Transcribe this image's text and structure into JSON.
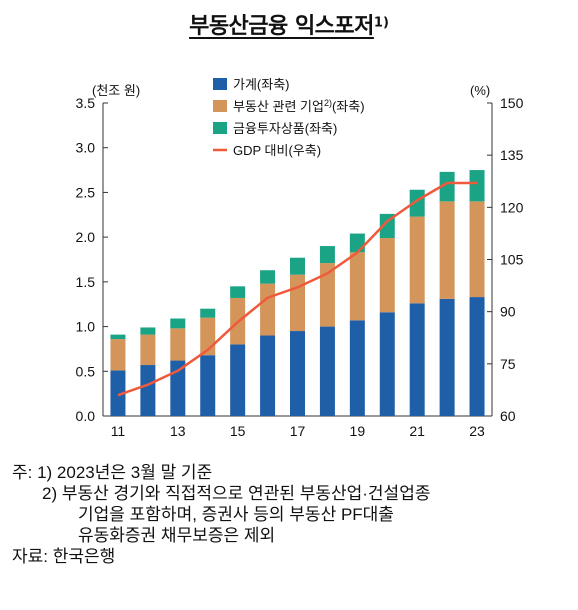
{
  "title": "부동산금융 익스포저",
  "title_sup": "1)",
  "chart_data": {
    "type": "bar",
    "stacked": true,
    "categories": [
      "11",
      "12",
      "13",
      "14",
      "15",
      "16",
      "17",
      "18",
      "19",
      "20",
      "21",
      "22",
      "23"
    ],
    "x_tick_labels": [
      "11",
      "13",
      "15",
      "17",
      "19",
      "21",
      "23"
    ],
    "left_unit": "(천조 원)",
    "right_unit": "(%)",
    "ylim_left": [
      0,
      3.5
    ],
    "yticks_left": [
      "0.0",
      "0.5",
      "1.0",
      "1.5",
      "2.0",
      "2.5",
      "3.0",
      "3.5"
    ],
    "ylim_right": [
      60,
      150
    ],
    "yticks_right": [
      "60",
      "75",
      "90",
      "105",
      "120",
      "135",
      "150"
    ],
    "grid": false,
    "legend_position": "top-left",
    "series": [
      {
        "name": "가계(좌축)",
        "color": "#1f5fa8",
        "axis": "left",
        "values": [
          0.51,
          0.57,
          0.62,
          0.68,
          0.8,
          0.9,
          0.95,
          1.0,
          1.07,
          1.16,
          1.26,
          1.31,
          1.33
        ]
      },
      {
        "name": "부동산 관련 기업",
        "name_sup": "2)",
        "name_suffix": "(좌축)",
        "color": "#d4955a",
        "axis": "left",
        "values": [
          0.35,
          0.34,
          0.36,
          0.42,
          0.52,
          0.58,
          0.63,
          0.71,
          0.76,
          0.83,
          0.97,
          1.09,
          1.07
        ]
      },
      {
        "name": "금융투자상품(좌축)",
        "color": "#1aa384",
        "axis": "left",
        "values": [
          0.05,
          0.08,
          0.11,
          0.1,
          0.13,
          0.15,
          0.19,
          0.19,
          0.21,
          0.27,
          0.3,
          0.33,
          0.35
        ]
      },
      {
        "name": "GDP 대비(우축)",
        "color": "#f05a3c",
        "axis": "right",
        "type": "line",
        "values": [
          66,
          69,
          73,
          79,
          87,
          94,
          97,
          101,
          107,
          116,
          122,
          127,
          127
        ]
      }
    ]
  },
  "notes": {
    "line1": "주:  1)  2023년은 3월 말 기준",
    "line2": "2)  부동산 경기와 직접적으로 연관된 부동산업·건설업종",
    "line3": "기업을 포함하며, 증권사 등의 부동산 PF대출",
    "line4": "유동화증권 채무보증은 제외",
    "source": "자료:  한국은행"
  }
}
